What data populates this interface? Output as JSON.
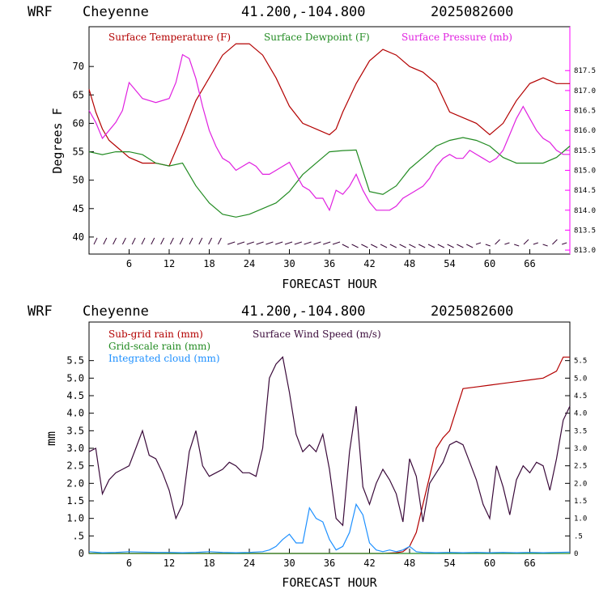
{
  "chart_data": [
    {
      "type": "line",
      "header": {
        "model": "WRF",
        "location": "Cheyenne",
        "coords": "41.200,-104.800",
        "run": "2025082600"
      },
      "xlabel": "FORECAST HOUR",
      "ylabel": "Degrees F",
      "xlim": [
        0,
        72
      ],
      "ylim": [
        37,
        77
      ],
      "y2lim": [
        812.9,
        818.6
      ],
      "xticks": [
        "6",
        "12",
        "18",
        "24",
        "30",
        "36",
        "42",
        "48",
        "54",
        "60",
        "66"
      ],
      "yticks": [
        "40",
        "45",
        "50",
        "55",
        "60",
        "65",
        "70"
      ],
      "y2ticks": [
        "813.0",
        "813.5",
        "814.0",
        "814.5",
        "815.0",
        "815.5",
        "816.0",
        "816.5",
        "817.0",
        "817.5"
      ],
      "series": [
        {
          "name": "Surface Temperature (F)",
          "color": "#b30000",
          "axis": "left",
          "x": [
            0,
            1,
            2,
            3,
            4,
            5,
            6,
            8,
            10,
            12,
            14,
            16,
            18,
            20,
            22,
            24,
            26,
            28,
            30,
            32,
            34,
            36,
            37,
            38,
            40,
            42,
            44,
            46,
            48,
            50,
            52,
            54,
            56,
            58,
            60,
            62,
            64,
            66,
            68,
            70,
            72
          ],
          "y": [
            66,
            62,
            59,
            57,
            56,
            55,
            54,
            53,
            53,
            52.5,
            58,
            64,
            68,
            72,
            74,
            74,
            72,
            68,
            63,
            60,
            59,
            58,
            59,
            62,
            67,
            71,
            73,
            72,
            70,
            69,
            67,
            62,
            61,
            60,
            58,
            60,
            64,
            67,
            68,
            67,
            67
          ]
        },
        {
          "name": "Surface Dewpoint (F)",
          "color": "#228b22",
          "axis": "left",
          "x": [
            0,
            2,
            4,
            6,
            8,
            10,
            12,
            14,
            16,
            18,
            20,
            22,
            24,
            26,
            28,
            30,
            32,
            34,
            36,
            38,
            40,
            42,
            44,
            46,
            48,
            50,
            52,
            54,
            56,
            58,
            60,
            62,
            64,
            66,
            68,
            70,
            72
          ],
          "y": [
            55,
            54.5,
            55,
            55,
            54.5,
            53,
            52.5,
            53,
            49,
            46,
            44,
            43.5,
            44,
            45,
            46,
            48,
            51,
            53,
            55,
            55.2,
            55.3,
            48,
            47.5,
            49,
            52,
            54,
            56,
            57,
            57.5,
            57,
            56,
            54,
            53,
            53,
            53,
            54,
            56
          ]
        },
        {
          "name": "Surface Pressure (mb)",
          "color": "#e020e0",
          "axis": "right",
          "x": [
            0,
            1,
            2,
            3,
            4,
            5,
            6,
            7,
            8,
            10,
            12,
            13,
            14,
            15,
            16,
            17,
            18,
            19,
            20,
            21,
            22,
            23,
            24,
            25,
            26,
            27,
            28,
            29,
            30,
            31,
            32,
            33,
            34,
            35,
            36,
            37,
            38,
            39,
            40,
            41,
            42,
            43,
            44,
            45,
            46,
            47,
            48,
            49,
            50,
            51,
            52,
            53,
            54,
            55,
            56,
            57,
            58,
            59,
            60,
            61,
            62,
            63,
            64,
            65,
            66,
            67,
            68,
            69,
            70,
            71,
            72
          ],
          "y": [
            816.5,
            816.2,
            815.8,
            816.0,
            816.2,
            816.5,
            817.2,
            817.0,
            816.8,
            816.7,
            816.8,
            817.2,
            817.9,
            817.8,
            817.3,
            816.6,
            816.0,
            815.6,
            815.3,
            815.2,
            815.0,
            815.1,
            815.2,
            815.1,
            814.9,
            814.9,
            815.0,
            815.1,
            815.2,
            814.9,
            814.6,
            814.5,
            814.3,
            814.3,
            814.0,
            814.5,
            814.4,
            814.6,
            814.9,
            814.5,
            814.2,
            814.0,
            814.0,
            814.0,
            814.1,
            814.3,
            814.4,
            814.5,
            814.6,
            814.8,
            815.1,
            815.3,
            815.4,
            815.3,
            815.3,
            815.5,
            815.4,
            815.3,
            815.2,
            815.3,
            815.5,
            815.9,
            816.3,
            816.6,
            816.3,
            816.0,
            815.8,
            815.7,
            815.5,
            815.4,
            815.4
          ]
        }
      ]
    },
    {
      "type": "line",
      "header": {
        "model": "WRF",
        "location": "Cheyenne",
        "coords": "41.200,-104.800",
        "run": "2025082600"
      },
      "xlabel": "FORECAST HOUR",
      "ylabel": "mm",
      "xlim": [
        0,
        72
      ],
      "ylim": [
        0,
        6.6
      ],
      "xticks": [
        "6",
        "12",
        "18",
        "24",
        "30",
        "36",
        "42",
        "48",
        "54",
        "60",
        "66"
      ],
      "yticks": [
        "0",
        ".5",
        "1.0",
        "1.5",
        "2.0",
        "2.5",
        "3.0",
        "3.5",
        "4.0",
        "4.5",
        "5.0",
        "5.5"
      ],
      "y2ticks": [
        "0",
        ".5",
        "1.0",
        "1.5",
        "2.0",
        "2.5",
        "3.0",
        "3.5",
        "4.0",
        "4.5",
        "5.0",
        "5.5"
      ],
      "series": [
        {
          "name": "Sub-grid rain (mm)",
          "color": "#b30000",
          "x": [
            0,
            44,
            46,
            47,
            48,
            49,
            50,
            51,
            52,
            53,
            54,
            56,
            58,
            60,
            62,
            64,
            66,
            68,
            70,
            71,
            72
          ],
          "y": [
            0,
            0,
            0.02,
            0.05,
            0.2,
            0.6,
            1.4,
            2.2,
            3.0,
            3.3,
            3.5,
            4.7,
            4.75,
            4.8,
            4.85,
            4.9,
            4.95,
            5.0,
            5.2,
            5.6,
            5.6
          ]
        },
        {
          "name": "Grid-scale rain (mm)",
          "color": "#228b22",
          "x": [
            0,
            72
          ],
          "y": [
            0,
            0
          ]
        },
        {
          "name": "Integrated cloud (mm)",
          "color": "#1e90ff",
          "x": [
            0,
            2,
            4,
            6,
            8,
            10,
            12,
            14,
            16,
            18,
            20,
            22,
            24,
            26,
            27,
            28,
            29,
            30,
            31,
            32,
            33,
            34,
            35,
            36,
            37,
            38,
            39,
            40,
            41,
            42,
            43,
            44,
            45,
            46,
            47,
            48,
            49,
            50,
            52,
            54,
            56,
            58,
            60,
            62,
            64,
            66,
            68,
            70,
            72
          ],
          "y": [
            0.05,
            0.02,
            0.03,
            0.05,
            0.04,
            0.03,
            0.03,
            0.02,
            0.03,
            0.05,
            0.03,
            0.02,
            0.03,
            0.05,
            0.1,
            0.2,
            0.4,
            0.55,
            0.3,
            0.3,
            1.3,
            1.0,
            0.9,
            0.4,
            0.1,
            0.2,
            0.6,
            1.4,
            1.1,
            0.3,
            0.1,
            0.05,
            0.1,
            0.05,
            0.1,
            0.2,
            0.05,
            0.03,
            0.02,
            0.03,
            0.02,
            0.03,
            0.02,
            0.03,
            0.02,
            0.03,
            0.02,
            0.03,
            0.04
          ]
        },
        {
          "name": "Surface Wind Speed (m/s)",
          "color": "#3a0a3a",
          "x": [
            0,
            1,
            2,
            3,
            4,
            5,
            6,
            7,
            8,
            9,
            10,
            11,
            12,
            13,
            14,
            15,
            16,
            17,
            18,
            19,
            20,
            21,
            22,
            23,
            24,
            25,
            26,
            27,
            28,
            29,
            30,
            31,
            32,
            33,
            34,
            35,
            36,
            37,
            38,
            39,
            40,
            41,
            42,
            43,
            44,
            45,
            46,
            47,
            48,
            49,
            50,
            51,
            52,
            53,
            54,
            55,
            56,
            57,
            58,
            59,
            60,
            61,
            62,
            63,
            64,
            65,
            66,
            67,
            68,
            69,
            70,
            71,
            72
          ],
          "y": [
            2.9,
            3.0,
            1.7,
            2.1,
            2.3,
            2.4,
            2.5,
            3.0,
            3.5,
            2.8,
            2.7,
            2.3,
            1.8,
            1.0,
            1.4,
            2.9,
            3.5,
            2.5,
            2.2,
            2.3,
            2.4,
            2.6,
            2.5,
            2.3,
            2.3,
            2.2,
            3.0,
            5.0,
            5.4,
            5.6,
            4.6,
            3.4,
            2.9,
            3.1,
            2.9,
            3.4,
            2.4,
            1.0,
            0.8,
            2.9,
            4.2,
            1.9,
            1.4,
            2.0,
            2.4,
            2.1,
            1.7,
            0.9,
            2.7,
            2.2,
            0.9,
            2.0,
            2.3,
            2.6,
            3.1,
            3.2,
            3.1,
            2.6,
            2.1,
            1.4,
            1.0,
            2.5,
            1.9,
            1.1,
            2.1,
            2.5,
            2.3,
            2.6,
            2.5,
            1.8,
            2.7,
            3.8,
            4.2
          ]
        }
      ]
    }
  ]
}
